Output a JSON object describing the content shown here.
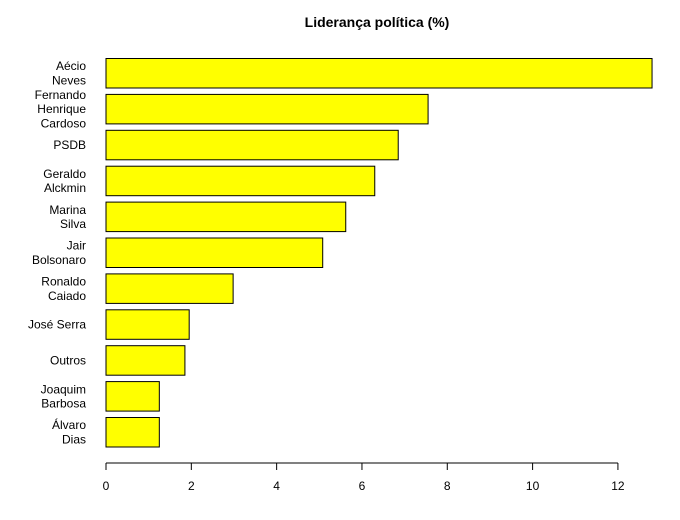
{
  "chart_data": {
    "type": "bar",
    "orientation": "horizontal",
    "title": "Liderança política (%)",
    "xlabel": "",
    "ylabel": "",
    "categories": [
      [
        "Aécio",
        "Neves"
      ],
      [
        "Fernando",
        "Henrique",
        "Cardoso"
      ],
      [
        "PSDB"
      ],
      [
        "Geraldo",
        "Alckmin"
      ],
      [
        "Marina",
        "Silva"
      ],
      [
        "Jair",
        "Bolsonaro"
      ],
      [
        "Ronaldo",
        "Caiado"
      ],
      [
        "José Serra"
      ],
      [
        "Outros"
      ],
      [
        "Joaquim",
        "Barbosa"
      ],
      [
        "Álvaro",
        "Dias"
      ]
    ],
    "values": [
      12.8,
      7.55,
      6.85,
      6.3,
      5.62,
      5.08,
      2.98,
      1.95,
      1.85,
      1.25,
      1.25
    ],
    "xlim": [
      0,
      12.8
    ],
    "xticks": [
      "0",
      "2",
      "4",
      "6",
      "8",
      "10",
      "12"
    ],
    "bar_color": "#ffff00",
    "grid": false,
    "legend": "none"
  }
}
